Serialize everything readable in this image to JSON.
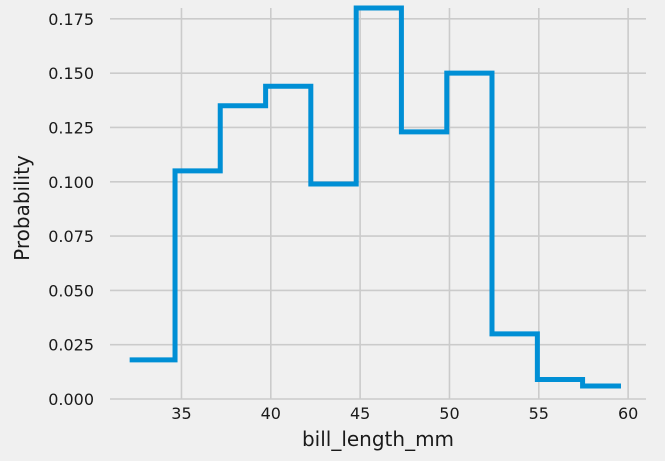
{
  "chart_data": {
    "type": "histogram-step",
    "xlabel": "bill_length_mm",
    "ylabel": "Probability",
    "xlim": [
      31,
      61
    ],
    "ylim": [
      0,
      0.18
    ],
    "xticks": [
      35,
      40,
      45,
      50,
      55,
      60
    ],
    "yticks": [
      0.0,
      0.025,
      0.05,
      0.075,
      0.1,
      0.125,
      0.15,
      0.175
    ],
    "ytick_labels": [
      "0.000",
      "0.025",
      "0.050",
      "0.075",
      "0.100",
      "0.125",
      "0.150",
      "0.175"
    ],
    "grid": true,
    "bin_edges": [
      32.1,
      34.64,
      37.17,
      39.71,
      42.24,
      44.78,
      47.31,
      49.85,
      52.38,
      54.92,
      57.45,
      59.6
    ],
    "values": [
      0.018,
      0.105,
      0.135,
      0.144,
      0.099,
      0.18,
      0.123,
      0.15,
      0.03,
      0.009,
      0.006
    ],
    "line_color": "#008fd5"
  }
}
